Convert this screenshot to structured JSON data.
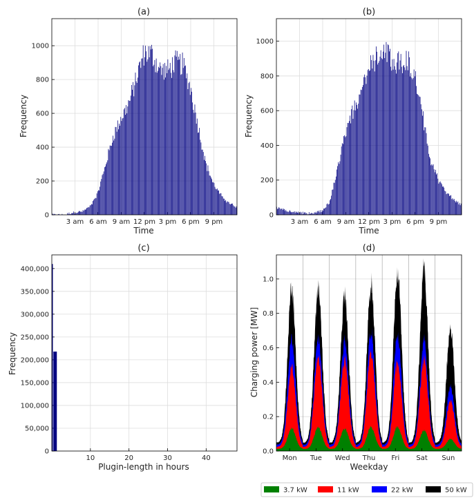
{
  "chart_data": [
    {
      "type": "bar",
      "title": "(a)",
      "xlabel": "Time",
      "ylabel": "Frequency",
      "x_ticks": [
        "3 am",
        "6 am",
        "9 am",
        "12 pm",
        "3 pm",
        "6 pm",
        "9 pm"
      ],
      "x_tick_hours": [
        3,
        6,
        9,
        12,
        15,
        18,
        21
      ],
      "y_ticks": [
        0,
        200,
        400,
        600,
        800,
        1000
      ],
      "ylim": [
        0,
        1160
      ],
      "xlim_hours": [
        0,
        24
      ],
      "bin_hours": 0.1,
      "color": "#000080",
      "profile_hours": [
        0,
        1.8,
        2.2,
        3,
        4,
        5,
        6,
        7,
        8,
        9,
        10,
        11,
        12,
        13,
        14,
        15,
        16,
        17,
        18,
        19,
        20,
        21,
        22,
        23,
        24
      ],
      "profile_values": [
        0,
        0,
        8,
        15,
        20,
        50,
        130,
        300,
        470,
        570,
        660,
        810,
        960,
        950,
        860,
        850,
        900,
        890,
        750,
        520,
        300,
        180,
        110,
        70,
        45
      ]
    },
    {
      "type": "bar",
      "title": "(b)",
      "xlabel": "Time",
      "ylabel": "Frequency",
      "x_ticks": [
        "3 am",
        "6 am",
        "9 am",
        "12 pm",
        "3 pm",
        "6 pm",
        "9 pm"
      ],
      "x_tick_hours": [
        3,
        6,
        9,
        12,
        15,
        18,
        21
      ],
      "y_ticks": [
        0,
        200,
        400,
        600,
        800,
        1000
      ],
      "ylim": [
        0,
        1130
      ],
      "xlim_hours": [
        0,
        24
      ],
      "bin_hours": 0.1,
      "color": "#000080",
      "profile_hours": [
        0,
        1,
        2,
        3,
        4,
        5,
        6,
        7,
        8,
        9,
        10,
        11,
        12,
        13,
        14,
        15,
        16,
        17,
        18,
        19,
        20,
        21,
        22,
        23,
        24
      ],
      "profile_values": [
        40,
        28,
        18,
        12,
        8,
        10,
        25,
        80,
        280,
        470,
        600,
        720,
        830,
        920,
        960,
        890,
        880,
        890,
        800,
        560,
        320,
        200,
        130,
        85,
        55
      ]
    },
    {
      "type": "bar",
      "title": "(c)",
      "xlabel": "Plugin-length in hours",
      "ylabel": "Frequency",
      "x_ticks": [
        10,
        20,
        30,
        40
      ],
      "y_ticks": [
        "0",
        "50,000",
        "100,000",
        "150,000",
        "200,000",
        "250,000",
        "300,000",
        "350,000",
        "400,000"
      ],
      "y_tick_values": [
        0,
        50000,
        100000,
        150000,
        200000,
        250000,
        300000,
        350000,
        400000
      ],
      "ylim": [
        0,
        430000
      ],
      "xlim": [
        0,
        48
      ],
      "color": "#000080",
      "bars": [
        {
          "x0": 0.0,
          "x1": 0.25,
          "value": 410000
        },
        {
          "x0": 0.4,
          "x1": 1.3,
          "value": 218000
        }
      ]
    },
    {
      "type": "area",
      "title": "(d)",
      "xlabel": "Weekday",
      "ylabel": "Charging power [MW]",
      "categories": [
        "Mon",
        "Tue",
        "Wed",
        "Thu",
        "Fri",
        "Sat",
        "Sun"
      ],
      "y_ticks": [
        "0.0",
        "0.2",
        "0.4",
        "0.6",
        "0.8",
        "1.0"
      ],
      "y_tick_values": [
        0,
        0.2,
        0.4,
        0.6,
        0.8,
        1.0
      ],
      "ylim": [
        0,
        1.14
      ],
      "legend_position": "bottom",
      "series": [
        {
          "name": "3.7 kW",
          "color": "#008000",
          "peaks": [
            0.13,
            0.14,
            0.13,
            0.14,
            0.14,
            0.12,
            0.07
          ]
        },
        {
          "name": "11 kW",
          "color": "#ff0000",
          "peaks": [
            0.48,
            0.55,
            0.53,
            0.58,
            0.52,
            0.53,
            0.29
          ]
        },
        {
          "name": "22 kW",
          "color": "#0000ff",
          "peaks": [
            0.64,
            0.66,
            0.64,
            0.7,
            0.68,
            0.64,
            0.37
          ]
        },
        {
          "name": "50 kW",
          "color": "#000000",
          "peaks": [
            0.94,
            0.95,
            0.91,
            0.98,
            1.04,
            1.06,
            0.7
          ]
        }
      ]
    }
  ]
}
